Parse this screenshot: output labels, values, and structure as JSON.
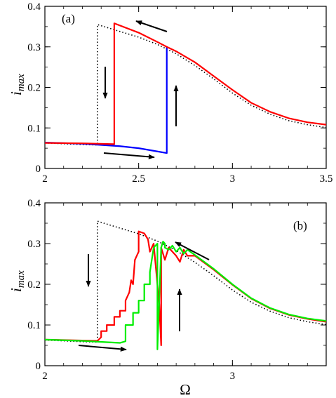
{
  "figure": {
    "xlabel_shared": "Ω",
    "ylabel": "i",
    "ylabel_sub": "max"
  },
  "chart_data": [
    {
      "type": "line",
      "panel_label": "(a)",
      "xlim": [
        2,
        3.5
      ],
      "ylim": [
        0,
        0.4
      ],
      "xticks": [
        2,
        2.5,
        3,
        3.5
      ],
      "yticks": [
        0,
        0.1,
        0.2,
        0.3,
        0.4
      ],
      "xtick_labels": [
        "2",
        "2.5",
        "3",
        "3.5"
      ],
      "ytick_labels": [
        "0",
        "0.1",
        "0.2",
        "0.3",
        "0.4"
      ],
      "grid": false,
      "legend": "none",
      "series": [
        {
          "color": "#000000",
          "style": "dotted",
          "x": [
            2.0,
            2.2,
            2.28,
            2.28,
            2.4,
            2.5,
            2.6,
            2.7,
            2.8,
            2.9,
            3.0,
            3.1,
            3.2,
            3.3,
            3.4,
            3.5
          ],
          "y": [
            0.063,
            0.059,
            0.058,
            0.355,
            0.338,
            0.324,
            0.306,
            0.283,
            0.254,
            0.221,
            0.186,
            0.156,
            0.134,
            0.118,
            0.108,
            0.101
          ]
        },
        {
          "color": "#0000ff",
          "style": "solid",
          "x": [
            2.0,
            2.2,
            2.4,
            2.5,
            2.6,
            2.65,
            2.65
          ],
          "y": [
            0.064,
            0.061,
            0.055,
            0.05,
            0.042,
            0.038,
            0.3
          ]
        },
        {
          "color": "#ff0000",
          "style": "solid",
          "x": [
            2.0,
            2.2,
            2.37,
            2.37,
            2.5,
            2.6,
            2.65,
            2.7,
            2.8,
            2.9,
            3.0,
            3.1,
            3.2,
            3.3,
            3.4,
            3.5
          ],
          "y": [
            0.063,
            0.062,
            0.06,
            0.358,
            0.335,
            0.312,
            0.3,
            0.289,
            0.262,
            0.228,
            0.194,
            0.162,
            0.14,
            0.124,
            0.114,
            0.108
          ]
        }
      ],
      "annotations": [
        "arrow-up-left",
        "arrow-down",
        "arrow-up",
        "arrow-right"
      ]
    },
    {
      "type": "line",
      "panel_label": "(b)",
      "xlim": [
        2,
        3.5
      ],
      "ylim": [
        0,
        0.4
      ],
      "xticks": [
        2,
        3
      ],
      "yticks": [
        0,
        0.1,
        0.2,
        0.3,
        0.4
      ],
      "xtick_labels": [
        "2",
        "3"
      ],
      "ytick_labels": [
        "0",
        "0.1",
        "0.2",
        "0.3",
        "0.4"
      ],
      "grid": false,
      "legend": "none",
      "series": [
        {
          "color": "#000000",
          "style": "dotted",
          "x": [
            2.0,
            2.2,
            2.28,
            2.28,
            2.4,
            2.5,
            2.6,
            2.7,
            2.8,
            2.9,
            3.0,
            3.1,
            3.2,
            3.3,
            3.4,
            3.5
          ],
          "y": [
            0.063,
            0.059,
            0.058,
            0.355,
            0.338,
            0.324,
            0.306,
            0.283,
            0.254,
            0.221,
            0.186,
            0.156,
            0.134,
            0.118,
            0.108,
            0.101
          ]
        },
        {
          "color": "#ff0000",
          "style": "solid",
          "x": [
            2.0,
            2.2,
            2.28,
            2.3,
            2.3,
            2.33,
            2.33,
            2.37,
            2.37,
            2.4,
            2.4,
            2.43,
            2.43,
            2.45,
            2.46,
            2.47,
            2.48,
            2.5,
            2.5,
            2.53,
            2.55,
            2.56,
            2.58,
            2.6,
            2.61,
            2.62,
            2.62,
            2.64,
            2.66,
            2.7,
            2.72,
            2.74,
            2.76,
            2.8,
            2.9,
            3.0,
            3.1,
            3.2,
            3.3,
            3.4,
            3.5
          ],
          "y": [
            0.064,
            0.062,
            0.061,
            0.07,
            0.085,
            0.085,
            0.1,
            0.1,
            0.12,
            0.12,
            0.135,
            0.135,
            0.16,
            0.18,
            0.21,
            0.2,
            0.26,
            0.28,
            0.33,
            0.325,
            0.31,
            0.28,
            0.3,
            0.2,
            0.15,
            0.05,
            0.29,
            0.26,
            0.29,
            0.27,
            0.255,
            0.285,
            0.27,
            0.27,
            0.236,
            0.199,
            0.165,
            0.141,
            0.125,
            0.115,
            0.108
          ]
        },
        {
          "color": "#00ee00",
          "style": "solid",
          "x": [
            2.0,
            2.2,
            2.4,
            2.43,
            2.43,
            2.47,
            2.47,
            2.5,
            2.5,
            2.53,
            2.53,
            2.56,
            2.56,
            2.58,
            2.6,
            2.6,
            2.62,
            2.63,
            2.64,
            2.64,
            2.66,
            2.68,
            2.7,
            2.72,
            2.74,
            2.76,
            2.8,
            2.9,
            3.0,
            3.1,
            3.2,
            3.3,
            3.4,
            3.5
          ],
          "y": [
            0.064,
            0.061,
            0.056,
            0.06,
            0.1,
            0.1,
            0.13,
            0.13,
            0.16,
            0.16,
            0.2,
            0.2,
            0.23,
            0.29,
            0.3,
            0.04,
            0.29,
            0.305,
            0.3,
            0.29,
            0.285,
            0.295,
            0.28,
            0.29,
            0.275,
            0.285,
            0.272,
            0.238,
            0.2,
            0.166,
            0.142,
            0.126,
            0.116,
            0.11
          ]
        }
      ],
      "annotations": [
        "arrow-up-left",
        "arrow-down",
        "arrow-up",
        "arrow-right"
      ]
    }
  ]
}
